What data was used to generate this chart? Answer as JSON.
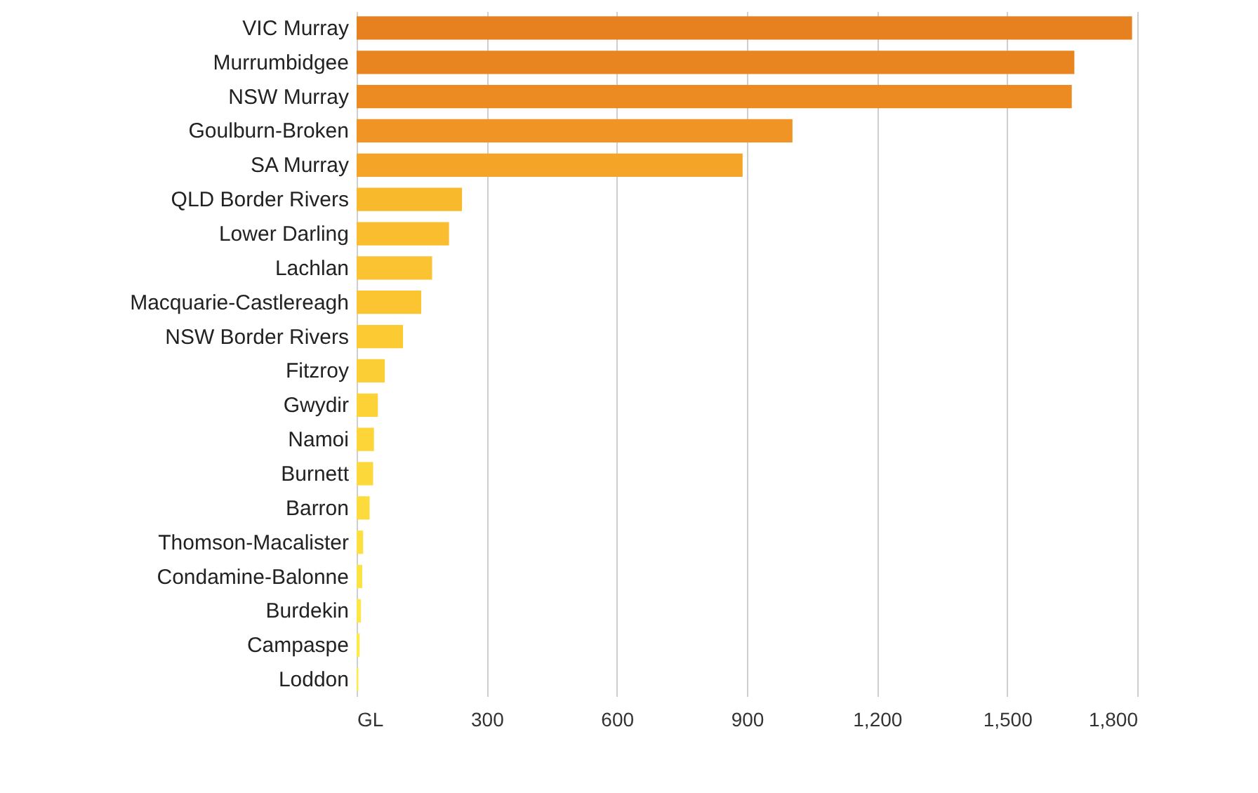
{
  "chart_data": {
    "type": "bar",
    "orientation": "horizontal",
    "categories": [
      "VIC Murray",
      "Murrumbidgee",
      "NSW Murray",
      "Goulburn-Broken",
      "SA Murray",
      "QLD Border Rivers",
      "Lower Darling",
      "Lachlan",
      "Macquarie-Castlereagh",
      "NSW Border Rivers",
      "Fitzroy",
      "Gwydir",
      "Namoi",
      "Burnett",
      "Barron",
      "Thomson-Macalister",
      "Condamine-Balonne",
      "Burdekin",
      "Campaspe",
      "Loddon"
    ],
    "values": [
      1788,
      1655,
      1649,
      1005,
      890,
      243,
      213,
      174,
      149,
      107,
      65,
      49,
      40,
      38,
      30,
      15,
      13,
      10,
      7,
      4
    ],
    "colors": [
      "#e7801e",
      "#e98520",
      "#ec8b22",
      "#f09525",
      "#f4a528",
      "#f9b92d",
      "#fabd2f",
      "#fbc231",
      "#fbc532",
      "#fcca33",
      "#fcce35",
      "#fdd237",
      "#fdd538",
      "#fdd83a",
      "#fddb3c",
      "#fde03f",
      "#fde341",
      "#fde645",
      "#fde948",
      "#fdeb4c"
    ],
    "xlim": [
      0,
      1800
    ],
    "xticks": [
      {
        "value": 0,
        "label": "GL"
      },
      {
        "value": 300,
        "label": "300"
      },
      {
        "value": 600,
        "label": "600"
      },
      {
        "value": 900,
        "label": "900"
      },
      {
        "value": 1200,
        "label": "1,200"
      },
      {
        "value": 1500,
        "label": "1,500"
      },
      {
        "value": 1800,
        "label": "1,800"
      }
    ],
    "grid": "x"
  }
}
